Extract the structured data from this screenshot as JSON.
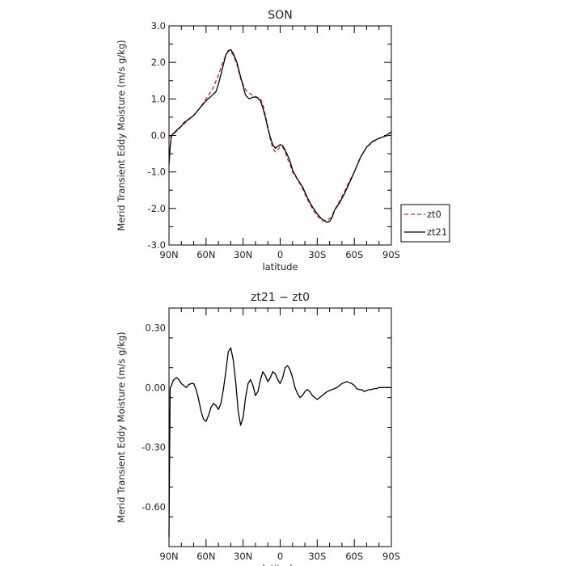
{
  "chart_data": [
    {
      "type": "line",
      "title": "SON",
      "xlabel": "latitude",
      "ylabel": "Merid Transient Eddy Moisture (m/s g/kg)",
      "xlim": [
        90,
        -90
      ],
      "ylim": [
        -3.0,
        3.0
      ],
      "x_ticks": [
        90,
        60,
        30,
        0,
        -30,
        -60,
        -90
      ],
      "x_tick_labels": [
        "90N",
        "60N",
        "30N",
        "0",
        "30S",
        "60S",
        "90S"
      ],
      "y_ticks": [
        -3.0,
        -2.0,
        -1.0,
        0.0,
        1.0,
        2.0,
        3.0
      ],
      "y_tick_labels": [
        "-3.0",
        "-2.0",
        "-1.0",
        "0.0",
        "1.0",
        "2.0",
        "3.0"
      ],
      "legend": "right-outside",
      "series": [
        {
          "name": "zt0",
          "color": "#e02020",
          "dash": "dashed",
          "x": [
            90,
            88,
            85,
            80,
            75,
            70,
            65,
            60,
            55,
            50,
            47,
            44,
            42,
            40,
            38,
            35,
            32,
            28,
            25,
            22,
            19,
            16,
            14,
            12,
            10,
            8,
            6,
            4,
            2,
            0,
            -2,
            -4,
            -6,
            -8,
            -10,
            -14,
            -18,
            -22,
            -26,
            -30,
            -34,
            -38,
            -40,
            -42,
            -44,
            -48,
            -52,
            -56,
            -60,
            -65,
            -70,
            -75,
            -80,
            -85,
            -88,
            -90
          ],
          "y": [
            -0.05,
            -0.02,
            0.08,
            0.25,
            0.4,
            0.55,
            0.75,
            1.0,
            1.25,
            1.65,
            1.95,
            2.2,
            2.3,
            2.3,
            2.2,
            1.95,
            1.55,
            1.25,
            1.15,
            1.1,
            1.05,
            1.0,
            0.85,
            0.55,
            0.25,
            -0.1,
            -0.35,
            -0.45,
            -0.4,
            -0.3,
            -0.32,
            -0.45,
            -0.65,
            -0.8,
            -1.0,
            -1.2,
            -1.45,
            -1.75,
            -2.0,
            -2.2,
            -2.33,
            -2.32,
            -2.28,
            -2.2,
            -2.05,
            -1.8,
            -1.55,
            -1.25,
            -1.0,
            -0.6,
            -0.32,
            -0.18,
            -0.08,
            -0.02,
            0.0,
            0.05
          ]
        },
        {
          "name": "zt21",
          "color": "#000000",
          "dash": "solid",
          "x": [
            90,
            89,
            88,
            85,
            82,
            80,
            78,
            75,
            70,
            65,
            60,
            55,
            52,
            50,
            47,
            44,
            42,
            40,
            38,
            35,
            32,
            28,
            25,
            22,
            19,
            16,
            14,
            12,
            10,
            8,
            6,
            4,
            2,
            0,
            -2,
            -4,
            -6,
            -8,
            -10,
            -14,
            -18,
            -22,
            -26,
            -30,
            -34,
            -38,
            -40,
            -42,
            -44,
            -48,
            -52,
            -56,
            -60,
            -65,
            -70,
            -75,
            -80,
            -85,
            -88,
            -90
          ],
          "y": [
            -0.8,
            -0.3,
            0.0,
            0.1,
            0.2,
            0.25,
            0.35,
            0.42,
            0.55,
            0.75,
            0.95,
            1.1,
            1.2,
            1.4,
            1.8,
            2.2,
            2.32,
            2.35,
            2.25,
            2.0,
            1.6,
            1.1,
            1.0,
            1.05,
            1.05,
            0.95,
            0.75,
            0.5,
            0.2,
            -0.05,
            -0.25,
            -0.35,
            -0.3,
            -0.25,
            -0.28,
            -0.4,
            -0.55,
            -0.7,
            -0.95,
            -1.2,
            -1.4,
            -1.7,
            -1.95,
            -2.15,
            -2.3,
            -2.38,
            -2.35,
            -2.25,
            -2.05,
            -1.85,
            -1.6,
            -1.3,
            -1.0,
            -0.6,
            -0.32,
            -0.16,
            -0.08,
            -0.02,
            0.05,
            0.1
          ]
        }
      ]
    },
    {
      "type": "line",
      "title": "zt21 − zt0",
      "xlabel": "latitude",
      "ylabel": "Merid Transient Eddy Moisture (m/s g/kg)",
      "xlim": [
        90,
        -90
      ],
      "ylim": [
        -0.8,
        0.4
      ],
      "x_ticks": [
        90,
        60,
        30,
        0,
        -30,
        -60,
        -90
      ],
      "x_tick_labels": [
        "90N",
        "60N",
        "30N",
        "0",
        "30S",
        "60S",
        "90S"
      ],
      "y_ticks": [
        -0.6,
        -0.3,
        0.0,
        0.3
      ],
      "y_tick_labels": [
        "-0.60",
        "-0.30",
        "0.00",
        "0.30"
      ],
      "series": [
        {
          "color": "#000000",
          "dash": "solid",
          "x": [
            90,
            89.5,
            89,
            88,
            87,
            86,
            84,
            82,
            80,
            78,
            76,
            74,
            72,
            70,
            68,
            66,
            64,
            62,
            60,
            58,
            56,
            54,
            52,
            50,
            48,
            46,
            44,
            42,
            40,
            38,
            36,
            34,
            32,
            30,
            28,
            26,
            24,
            22,
            20,
            18,
            16,
            14,
            12,
            10,
            8,
            6,
            4,
            2,
            0,
            -2,
            -4,
            -6,
            -8,
            -10,
            -12,
            -14,
            -16,
            -18,
            -20,
            -22,
            -24,
            -26,
            -28,
            -30,
            -32,
            -34,
            -36,
            -38,
            -40,
            -42,
            -44,
            -46,
            -48,
            -50,
            -52,
            -54,
            -56,
            -58,
            -60,
            -62,
            -64,
            -66,
            -68,
            -70,
            -72,
            -74,
            -76,
            -78,
            -80,
            -82,
            -84,
            -86,
            -88,
            -90
          ],
          "y": [
            -0.75,
            -0.3,
            0.0,
            0.01,
            0.03,
            0.04,
            0.05,
            0.04,
            0.02,
            0.01,
            0.0,
            0.015,
            0.02,
            0.02,
            -0.01,
            -0.06,
            -0.12,
            -0.16,
            -0.17,
            -0.14,
            -0.1,
            -0.08,
            -0.09,
            -0.11,
            -0.08,
            -0.01,
            0.08,
            0.18,
            0.2,
            0.14,
            0.03,
            -0.12,
            -0.19,
            -0.15,
            -0.05,
            0.02,
            0.04,
            0.01,
            -0.04,
            -0.02,
            0.04,
            0.08,
            0.06,
            0.03,
            0.05,
            0.08,
            0.07,
            0.04,
            0.02,
            0.05,
            0.1,
            0.11,
            0.09,
            0.05,
            0.0,
            -0.03,
            -0.05,
            -0.04,
            -0.02,
            -0.01,
            -0.02,
            -0.04,
            -0.05,
            -0.06,
            -0.05,
            -0.04,
            -0.03,
            -0.02,
            -0.015,
            -0.01,
            -0.005,
            0.0,
            0.01,
            0.02,
            0.025,
            0.03,
            0.025,
            0.02,
            0.01,
            -0.005,
            -0.01,
            -0.01,
            -0.02,
            -0.015,
            -0.01,
            -0.01,
            -0.005,
            -0.005,
            0.0,
            0.0,
            0.0,
            0.0,
            0.0,
            0.0
          ]
        }
      ]
    }
  ]
}
